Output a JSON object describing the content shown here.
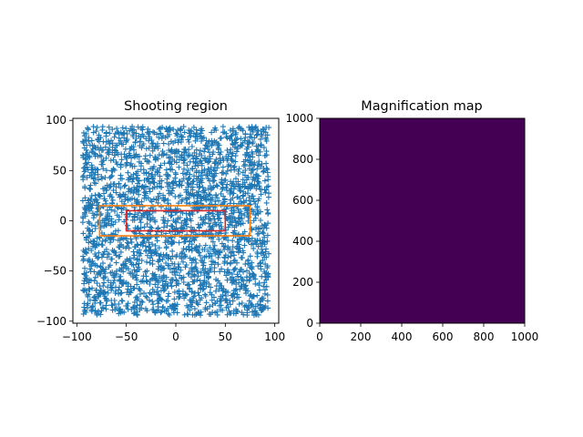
{
  "figure": {
    "background": "#ffffff"
  },
  "chart_data": [
    {
      "type": "scatter",
      "title": "Shooting region",
      "xlabel": "",
      "ylabel": "",
      "xlim": [
        -104,
        104
      ],
      "ylim": [
        -102,
        102
      ],
      "xticks": [
        -100,
        -50,
        0,
        50,
        100
      ],
      "yticks": [
        -100,
        -50,
        0,
        50,
        100
      ],
      "xtick_labels": [
        "−100",
        "−50",
        "0",
        "50",
        "100"
      ],
      "ytick_labels": [
        "−100",
        "−50",
        "0",
        "50",
        "100"
      ],
      "grid": false,
      "marker": "+",
      "series": [
        {
          "color": "#1f77b4",
          "points": [
            [
              -88.4,
              91.2
            ],
            [
              -52.1,
              87.6
            ],
            [
              -13.7,
              93.0
            ],
            [
              24.9,
              89.8
            ],
            [
              63.3,
              92.4
            ],
            [
              90.8,
              88.1
            ],
            [
              -90.6,
              62.0
            ],
            [
              -60.2,
              58.4
            ],
            [
              -30.5,
              64.7
            ],
            [
              3.6,
              60.9
            ],
            [
              39.1,
              57.2
            ],
            [
              77.5,
              63.5
            ],
            [
              -86.9,
              31.4
            ],
            [
              -45.8,
              28.9
            ],
            [
              -8.2,
              34.1
            ],
            [
              29.7,
              30.6
            ],
            [
              58.4,
              27.3
            ],
            [
              92.1,
              33.8
            ],
            [
              -91.3,
              4.7
            ],
            [
              -67.4,
              -2.9
            ],
            [
              -38.6,
              3.1
            ],
            [
              -12.0,
              -6.4
            ],
            [
              14.3,
              5.8
            ],
            [
              40.8,
              -3.7
            ],
            [
              66.9,
              2.2
            ],
            [
              89.5,
              -5.1
            ],
            [
              -88.1,
              -27.6
            ],
            [
              -55.3,
              -31.2
            ],
            [
              -20.6,
              -24.9
            ],
            [
              16.4,
              -29.8
            ],
            [
              52.7,
              -26.3
            ],
            [
              86.2,
              -32.5
            ],
            [
              -89.7,
              -58.3
            ],
            [
              -49.9,
              -61.7
            ],
            [
              -9.3,
              -56.4
            ],
            [
              33.5,
              -63.0
            ],
            [
              71.8,
              -59.6
            ],
            [
              -85.2,
              -88.9
            ],
            [
              -42.4,
              -92.3
            ],
            [
              -1.5,
              -87.1
            ],
            [
              41.6,
              -90.4
            ],
            [
              88.7,
              -86.2
            ]
          ]
        }
      ],
      "regions": [
        {
          "name": "",
          "color": "#ff7f0e",
          "x": [
            -77,
            75
          ],
          "y": [
            -15,
            15
          ]
        },
        {
          "name": "",
          "color": "#d62728",
          "x": [
            -50,
            50
          ],
          "y": [
            -10,
            10
          ]
        }
      ]
    },
    {
      "type": "heatmap",
      "title": "Magnification map",
      "xlabel": "",
      "ylabel": "",
      "xlim": [
        0,
        1000
      ],
      "ylim": [
        0,
        1000
      ],
      "xticks": [
        0,
        200,
        400,
        600,
        800,
        1000
      ],
      "yticks": [
        0,
        200,
        400,
        600,
        800,
        1000
      ],
      "xtick_labels": [
        "0",
        "200",
        "400",
        "600",
        "800",
        "1000"
      ],
      "ytick_labels": [
        "0",
        "200",
        "400",
        "600",
        "800",
        "1000"
      ],
      "grid": false,
      "colormap": "viridis",
      "fill_color": "#440154",
      "values": "uniform"
    }
  ]
}
